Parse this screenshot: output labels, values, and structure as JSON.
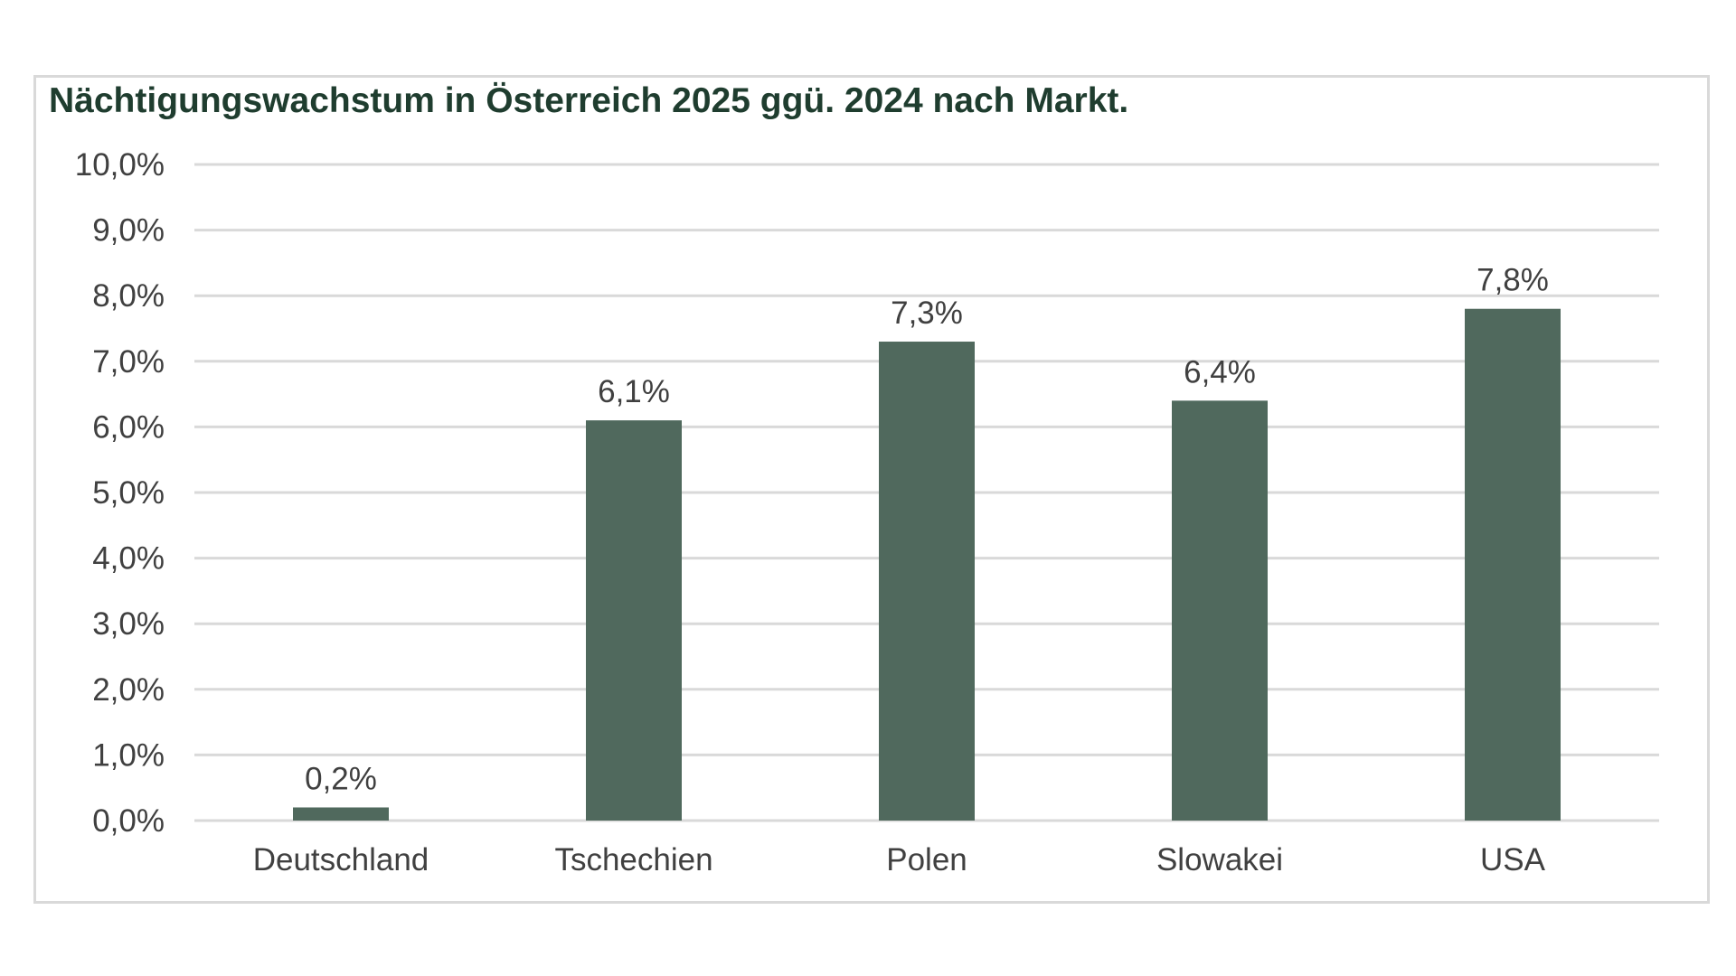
{
  "chart_data": {
    "type": "bar",
    "title": "Nächtigungswachstum in Österreich 2025 ggü. 2024 nach Markt.",
    "categories": [
      "Deutschland",
      "Tschechien",
      "Polen",
      "Slowakei",
      "USA"
    ],
    "values": [
      0.2,
      6.1,
      7.3,
      6.4,
      7.8
    ],
    "data_labels": [
      "0,2%",
      "6,1%",
      "7,3%",
      "6,4%",
      "7,8%"
    ],
    "ylim": [
      0,
      10
    ],
    "yticks": [
      0,
      1,
      2,
      3,
      4,
      5,
      6,
      7,
      8,
      9,
      10
    ],
    "ytick_labels": [
      "0,0%",
      "1,0%",
      "2,0%",
      "3,0%",
      "4,0%",
      "5,0%",
      "6,0%",
      "7,0%",
      "8,0%",
      "9,0%",
      "10,0%"
    ],
    "grid": true,
    "legend": "none",
    "bar_color": "#50695d",
    "grid_color": "#d9d9d9",
    "title_color": "#1f3d2f"
  }
}
